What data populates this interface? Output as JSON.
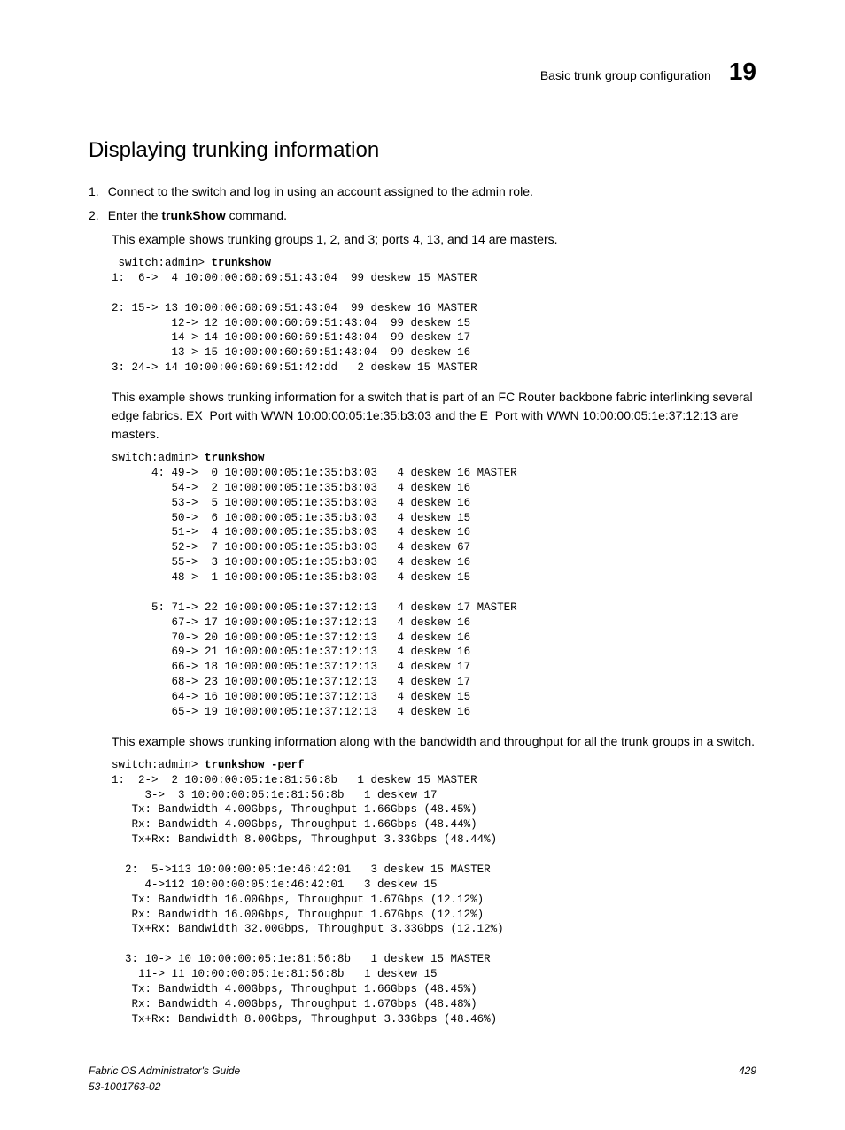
{
  "header": {
    "section_title": "Basic trunk group configuration",
    "chapter_num": "19"
  },
  "main": {
    "heading": "Displaying trunking information",
    "steps": [
      {
        "num": "1.",
        "text_before": "Connect to the switch and log in using an account assigned to the admin role.",
        "cmd": ""
      },
      {
        "num": "2.",
        "text_before": "Enter the ",
        "cmd": "trunkShow",
        "text_after": " command."
      }
    ],
    "para1": "This example shows trunking groups 1, 2, and 3; ports 4, 13, and 14 are masters.",
    "code1_prompt": " switch:admin> ",
    "code1_cmd": "trunkshow",
    "code1_body": "1:  6->  4 10:00:00:60:69:51:43:04  99 deskew 15 MASTER\n\n2: 15-> 13 10:00:00:60:69:51:43:04  99 deskew 16 MASTER\n         12-> 12 10:00:00:60:69:51:43:04  99 deskew 15\n         14-> 14 10:00:00:60:69:51:43:04  99 deskew 17\n         13-> 15 10:00:00:60:69:51:43:04  99 deskew 16\n3: 24-> 14 10:00:00:60:69:51:42:dd   2 deskew 15 MASTER",
    "para2": "This example shows trunking information for a switch that is part of an FC Router backbone fabric interlinking several edge fabrics. EX_Port with WWN 10:00:00:05:1e:35:b3:03 and the E_Port with WWN 10:00:00:05:1e:37:12:13 are masters.",
    "code2_prompt": "switch:admin> ",
    "code2_cmd": "trunkshow",
    "code2_body": "      4: 49->  0 10:00:00:05:1e:35:b3:03   4 deskew 16 MASTER\n         54->  2 10:00:00:05:1e:35:b3:03   4 deskew 16\n         53->  5 10:00:00:05:1e:35:b3:03   4 deskew 16\n         50->  6 10:00:00:05:1e:35:b3:03   4 deskew 15\n         51->  4 10:00:00:05:1e:35:b3:03   4 deskew 16\n         52->  7 10:00:00:05:1e:35:b3:03   4 deskew 67\n         55->  3 10:00:00:05:1e:35:b3:03   4 deskew 16\n         48->  1 10:00:00:05:1e:35:b3:03   4 deskew 15\n\n      5: 71-> 22 10:00:00:05:1e:37:12:13   4 deskew 17 MASTER\n         67-> 17 10:00:00:05:1e:37:12:13   4 deskew 16\n         70-> 20 10:00:00:05:1e:37:12:13   4 deskew 16\n         69-> 21 10:00:00:05:1e:37:12:13   4 deskew 16\n         66-> 18 10:00:00:05:1e:37:12:13   4 deskew 17\n         68-> 23 10:00:00:05:1e:37:12:13   4 deskew 17\n         64-> 16 10:00:00:05:1e:37:12:13   4 deskew 15\n         65-> 19 10:00:00:05:1e:37:12:13   4 deskew 16",
    "para3": "This example shows trunking information along with the bandwidth and throughput for all the trunk groups in a switch.",
    "code3_prompt": "switch:admin> ",
    "code3_cmd": "trunkshow -perf",
    "code3_body": "1:  2->  2 10:00:00:05:1e:81:56:8b   1 deskew 15 MASTER\n     3->  3 10:00:00:05:1e:81:56:8b   1 deskew 17\n   Tx: Bandwidth 4.00Gbps, Throughput 1.66Gbps (48.45%)\n   Rx: Bandwidth 4.00Gbps, Throughput 1.66Gbps (48.44%)\n   Tx+Rx: Bandwidth 8.00Gbps, Throughput 3.33Gbps (48.44%)\n\n  2:  5->113 10:00:00:05:1e:46:42:01   3 deskew 15 MASTER\n     4->112 10:00:00:05:1e:46:42:01   3 deskew 15\n   Tx: Bandwidth 16.00Gbps, Throughput 1.67Gbps (12.12%)\n   Rx: Bandwidth 16.00Gbps, Throughput 1.67Gbps (12.12%)\n   Tx+Rx: Bandwidth 32.00Gbps, Throughput 3.33Gbps (12.12%)\n\n  3: 10-> 10 10:00:00:05:1e:81:56:8b   1 deskew 15 MASTER\n    11-> 11 10:00:00:05:1e:81:56:8b   1 deskew 15\n   Tx: Bandwidth 4.00Gbps, Throughput 1.66Gbps (48.45%)\n   Rx: Bandwidth 4.00Gbps, Throughput 1.67Gbps (48.48%)\n   Tx+Rx: Bandwidth 8.00Gbps, Throughput 3.33Gbps (48.46%)"
  },
  "footer": {
    "title": "Fabric OS Administrator's Guide",
    "docnum": "53-1001763-02",
    "page": "429"
  }
}
